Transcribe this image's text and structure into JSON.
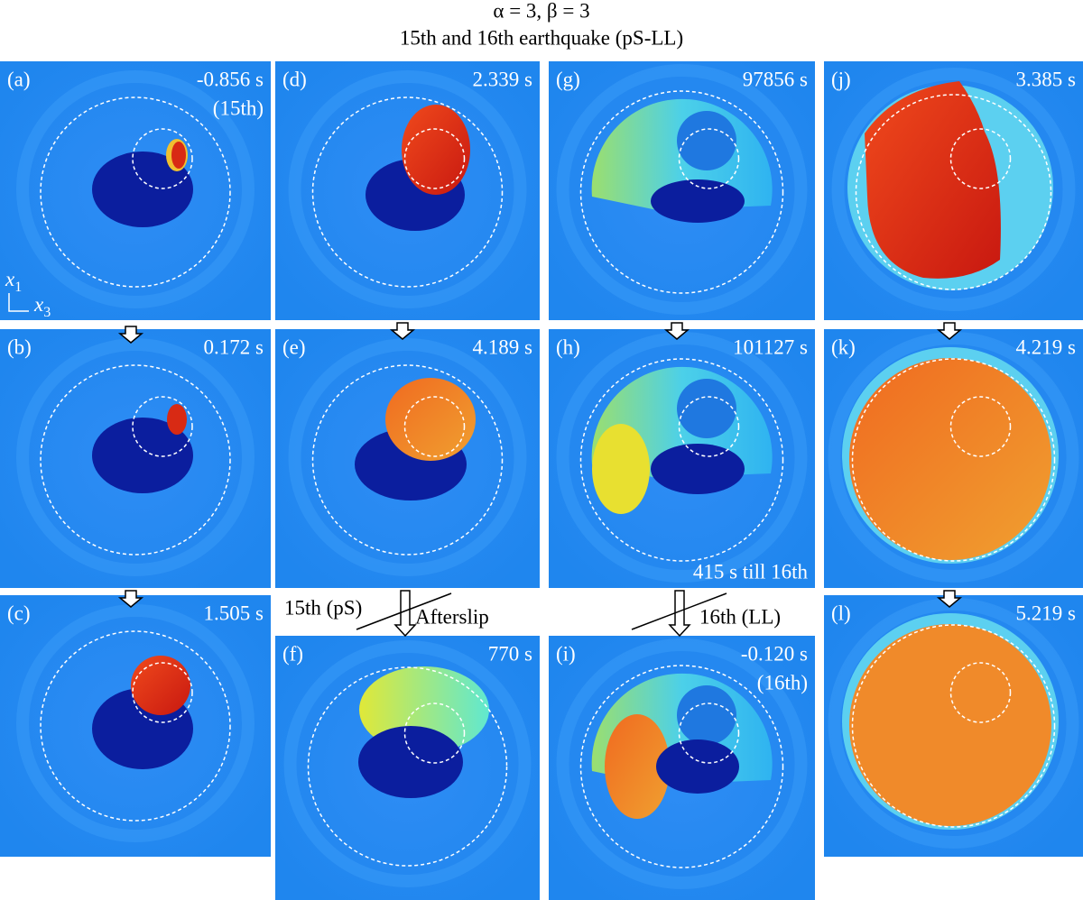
{
  "title_lines": [
    "α = 3, β = 3",
    "15th and 16th earthquake (pS-LL)"
  ],
  "panels": [
    {
      "label": "(a)",
      "time": "-0.856 s",
      "note": "(15th)"
    },
    {
      "label": "(b)",
      "time": "0.172 s"
    },
    {
      "label": "(c)",
      "time": "1.505 s"
    },
    {
      "label": "(d)",
      "time": "2.339 s"
    },
    {
      "label": "(e)",
      "time": "4.189 s"
    },
    {
      "label": "(f)",
      "time": "770 s"
    },
    {
      "label": "(g)",
      "time": "97856 s"
    },
    {
      "label": "(h)",
      "time": "101127 s",
      "note": "415 s till 16th"
    },
    {
      "label": "(i)",
      "time": "-0.120 s",
      "note": "(16th)"
    },
    {
      "label": "(j)",
      "time": "3.385 s"
    },
    {
      "label": "(k)",
      "time": "4.219 s"
    },
    {
      "label": "(l)",
      "time": "5.219 s"
    }
  ],
  "transitions": {
    "left_15": "15th (pS)",
    "afterslip": "Afterslip",
    "right_16": "16th (LL)"
  },
  "axes": {
    "vertical": {
      "symbol": "x",
      "sub": "1"
    },
    "horizontal": {
      "symbol": "x",
      "sub": "3"
    }
  }
}
